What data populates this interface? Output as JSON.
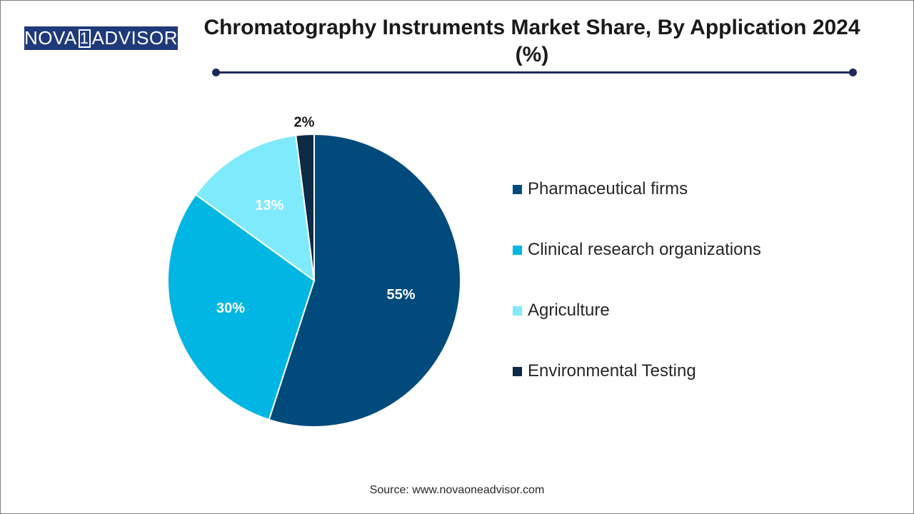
{
  "logo": {
    "text_left": "NOVA",
    "text_digit": "1",
    "text_right": "ADVISOR"
  },
  "chart_data": {
    "type": "pie",
    "title": "Chromatography Instruments Market Share, By Application 2024 (%)",
    "categories": [
      "Pharmaceutical firms",
      "Clinical research organizations",
      "Agriculture",
      "Environmental Testing"
    ],
    "values": [
      55,
      30,
      13,
      2
    ],
    "data_labels": [
      "55%",
      "30%",
      "13%",
      "2%"
    ],
    "colors": [
      "#004a7c",
      "#00b6e3",
      "#7eeafc",
      "#0d2a47"
    ],
    "legend_placement": "right"
  },
  "source": "Source: www.novaoneadvisor.com"
}
